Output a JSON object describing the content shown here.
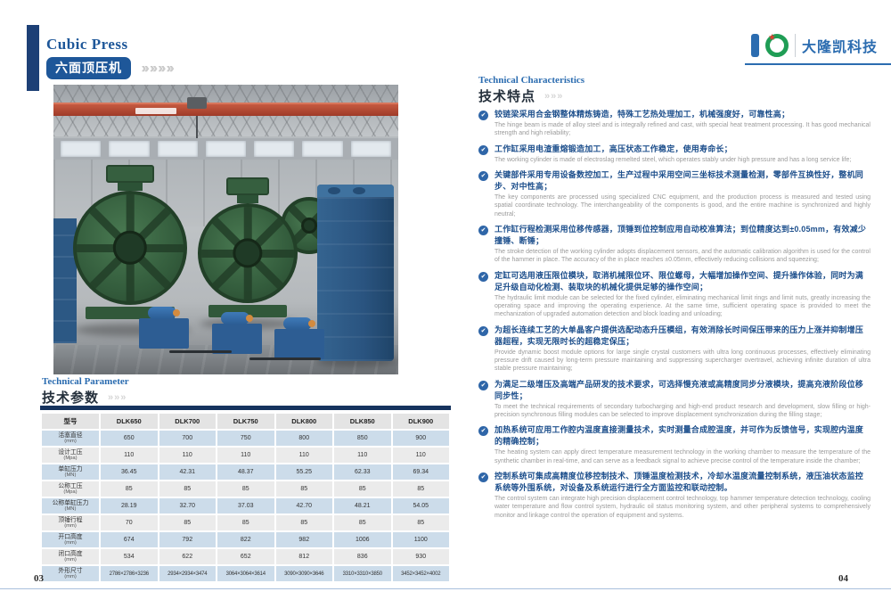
{
  "header": {
    "title_en": "Cubic Press",
    "title_zh": "六面顶压机",
    "chevrons": "»»»»",
    "logo_text": "大隆凯科技"
  },
  "left_page": {
    "section_title_en": "Technical Parameter",
    "section_title_zh": "技术参数",
    "chevrons": "»»»",
    "page_number": "03",
    "table": {
      "columns": [
        "型号",
        "DLK650",
        "DLK700",
        "DLK750",
        "DLK800",
        "DLK850",
        "DLK900"
      ],
      "rows": [
        {
          "label": "活塞直径",
          "unit": "(mm)",
          "values": [
            "650",
            "700",
            "750",
            "800",
            "850",
            "900"
          ]
        },
        {
          "label": "设计工压",
          "unit": "(Mpa)",
          "values": [
            "110",
            "110",
            "110",
            "110",
            "110",
            "110"
          ]
        },
        {
          "label": "单缸压力",
          "unit": "(MN)",
          "values": [
            "36.45",
            "42.31",
            "48.37",
            "55.25",
            "62.33",
            "69.34"
          ]
        },
        {
          "label": "公称工压",
          "unit": "(Mpa)",
          "values": [
            "85",
            "85",
            "85",
            "85",
            "85",
            "85"
          ]
        },
        {
          "label": "公称单缸压力",
          "unit": "(MN)",
          "values": [
            "28.19",
            "32.70",
            "37.03",
            "42.70",
            "48.21",
            "54.05"
          ]
        },
        {
          "label": "顶锤行程",
          "unit": "(mm)",
          "values": [
            "70",
            "85",
            "85",
            "85",
            "85",
            "85"
          ]
        },
        {
          "label": "开口高度",
          "unit": "(mm)",
          "values": [
            "674",
            "792",
            "822",
            "982",
            "1006",
            "1100"
          ]
        },
        {
          "label": "闭口高度",
          "unit": "(mm)",
          "values": [
            "534",
            "622",
            "652",
            "812",
            "836",
            "930"
          ]
        },
        {
          "label": "外形尺寸",
          "unit": "(mm)",
          "values": [
            "2786×2786×3236",
            "2934×2934×3474",
            "3064×3064×3614",
            "3090×3090×3646",
            "3310×3310×3850",
            "3452×3452×4002"
          ]
        }
      ]
    }
  },
  "right_page": {
    "section_title_en": "Technical Characteristics",
    "section_title_zh": "技术特点",
    "chevrons": "»»»",
    "page_number": "04",
    "features": [
      {
        "zh": "铰链梁采用合金钢整体精炼铸造，特殊工艺热处理加工，机械强度好，可靠性高；",
        "en": "The hinge beam is made of alloy steel and is integrally refined and cast, with special heat treatment processing. It has good mechanical strength and high reliability;"
      },
      {
        "zh": "工作缸采用电渣重熔锻造加工，高压状态工作稳定，使用寿命长；",
        "en": "The working cylinder is made of electroslag remelted steel, which operates stably under high pressure and has a long service life;"
      },
      {
        "zh": "关键部件采用专用设备数控加工，生产过程中采用空间三坐标技术测量检测，零部件互换性好，整机同步、对中性高；",
        "en": "The key components are processed using specialized CNC equipment, and the production process is measured and tested using spatial coordinate technology. The interchangeability of the components is good, and the entire machine is synchronized and highly neutral;"
      },
      {
        "zh": "工作缸行程检测采用位移传感器，顶锤到位控制应用自动校准算法；到位精度达到±0.05mm，有效减少撞锤、断锤；",
        "en": "The stroke detection of the working cylinder adopts displacement sensors, and the automatic calibration algorithm is used for the control of the hammer in place. The accuracy of the in place reaches ±0.05mm, effectively reducing collisions and squeezing;"
      },
      {
        "zh": "定缸可选用液压限位模块，取消机械限位环、限位螺母，大幅增加操作空间、提升操作体验，同时为满足升级自动化检测、装取块的机械化提供足够的操作空间；",
        "en": "The hydraulic limit module can be selected for the fixed cylinder, eliminating mechanical limit rings and limit nuts, greatly increasing the operating space and improving the operating experience. At the same time, sufficient operating space is provided to meet the mechanization of upgraded automation detection and block loading and unloading;"
      },
      {
        "zh": "为超长连续工艺的大单晶客户提供选配动态升压模组，有效消除长时间保压带来的压力上涨并抑制增压器超程，实现无限时长的超稳定保压；",
        "en": "Provide dynamic boost module options for large single crystal customers with ultra long continuous processes, effectively eliminating pressure drift caused by long-term pressure maintaining and suppressing supercharger overtravel, achieving infinite duration of ultra stable pressure maintaining;"
      },
      {
        "zh": "为满足二级增压及高端产品研发的技术要求，可选择慢充液或高精度同步分液模块，提高充液阶段位移同步性；",
        "en": "To meet the technical requirements of secondary turbocharging and high-end product research and development, slow filling or high-precision synchronous filling modules can be selected to improve displacement synchronization during the filling stage;"
      },
      {
        "zh": "加热系统可应用工作腔内温度直接测量技术，实时测量合成腔温度，并可作为反馈信号，实现腔内温度的精确控制；",
        "en": "The heating system can apply direct temperature measurement technology in the working chamber to measure the temperature of the synthetic chamber in real-time, and can serve as a feedback signal to achieve precise control of the temperature inside the chamber;"
      },
      {
        "zh": "控制系统可集成高精度位移控制技术、顶锤温度检测技术，冷却水温度流量控制系统，液压油状态监控系统等外围系统，对设备及系统运行进行全方面监控和联动控制。",
        "en": "The control system can integrate high precision displacement control technology, top hammer temperature detection technology, cooling water temperature and flow control system, hydraulic oil status monitoring system, and other peripheral systems to comprehensively monitor and linkage control the operation of equipment and systems."
      }
    ]
  },
  "colors": {
    "accent_blue": "#1e5799",
    "navy": "#16335e",
    "logo_green": "#1f9d55",
    "logo_red": "#e03c31",
    "crane_red": "#b5402e",
    "table_row_blue": "#ccdcea",
    "table_row_gray": "#ebebeb"
  }
}
